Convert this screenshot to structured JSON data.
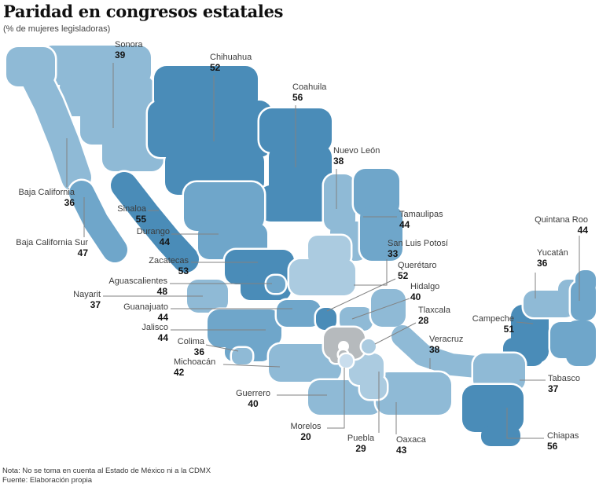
{
  "header": {
    "title": "Paridad en congresos estatales",
    "subtitle": "(% de mujeres legisladoras)"
  },
  "footer": {
    "note": "Nota: No se toma en cuenta al Estado de México ni a la CDMX",
    "source": "Fuente: Elaboración propia"
  },
  "colors": {
    "scale": [
      {
        "min": 50,
        "hex": "#4a8cb8"
      },
      {
        "min": 44,
        "hex": "#6fa6ca"
      },
      {
        "min": 34,
        "hex": "#8fbad6"
      },
      {
        "min": 25,
        "hex": "#abcbe0"
      },
      {
        "min": 0,
        "hex": "#c9dded"
      }
    ],
    "excluded": "#b6babd",
    "callout": "#828282",
    "label_text": "#3c3c3c",
    "value_text": "#141414",
    "background": "#ffffff"
  },
  "chart_data": {
    "type": "choropleth_map",
    "region": "Mexico (estados)",
    "title": "Paridad en congresos estatales",
    "unit": "% de mujeres legisladoras",
    "states": [
      {
        "id": "sonora",
        "name": "Sonora",
        "value": 39
      },
      {
        "id": "chihuahua",
        "name": "Chihuahua",
        "value": 52
      },
      {
        "id": "coahuila",
        "name": "Coahuila",
        "value": 56
      },
      {
        "id": "nuevo-leon",
        "name": "Nuevo León",
        "value": 38
      },
      {
        "id": "baja-california",
        "name": "Baja California",
        "value": 36
      },
      {
        "id": "baja-california-sur",
        "name": "Baja California Sur",
        "value": 47
      },
      {
        "id": "sinaloa",
        "name": "Sinaloa",
        "value": 55
      },
      {
        "id": "durango",
        "name": "Durango",
        "value": 44
      },
      {
        "id": "tamaulipas",
        "name": "Tamaulipas",
        "value": 44
      },
      {
        "id": "zacatecas",
        "name": "Zacatecas",
        "value": 53
      },
      {
        "id": "san-luis-potosi",
        "name": "San Luis Potosí",
        "value": 33
      },
      {
        "id": "aguascalientes",
        "name": "Aguascalientes",
        "value": 48
      },
      {
        "id": "queretaro",
        "name": "Querétaro",
        "value": 52
      },
      {
        "id": "nayarit",
        "name": "Nayarit",
        "value": 37
      },
      {
        "id": "hidalgo",
        "name": "Hidalgo",
        "value": 40
      },
      {
        "id": "guanajuato",
        "name": "Guanajuato",
        "value": 44
      },
      {
        "id": "tlaxcala",
        "name": "Tlaxcala",
        "value": 28
      },
      {
        "id": "jalisco",
        "name": "Jalisco",
        "value": 44
      },
      {
        "id": "colima",
        "name": "Colima",
        "value": 36
      },
      {
        "id": "veracruz",
        "name": "Veracruz",
        "value": 38
      },
      {
        "id": "michoacan",
        "name": "Michoacán",
        "value": 42
      },
      {
        "id": "campeche",
        "name": "Campeche",
        "value": 51
      },
      {
        "id": "quintana-roo",
        "name": "Quintana Roo",
        "value": 44
      },
      {
        "id": "yucatan",
        "name": "Yucatán",
        "value": 36
      },
      {
        "id": "guerrero",
        "name": "Guerrero",
        "value": 40
      },
      {
        "id": "tabasco",
        "name": "Tabasco",
        "value": 37
      },
      {
        "id": "morelos",
        "name": "Morelos",
        "value": 20
      },
      {
        "id": "puebla",
        "name": "Puebla",
        "value": 29
      },
      {
        "id": "oaxaca",
        "name": "Oaxaca",
        "value": 43
      },
      {
        "id": "chiapas",
        "name": "Chiapas",
        "value": 56
      }
    ],
    "excluded_regions": [
      {
        "id": "estado-de-mexico",
        "name": "Estado de México"
      },
      {
        "id": "cdmx",
        "name": "CDMX"
      }
    ]
  }
}
